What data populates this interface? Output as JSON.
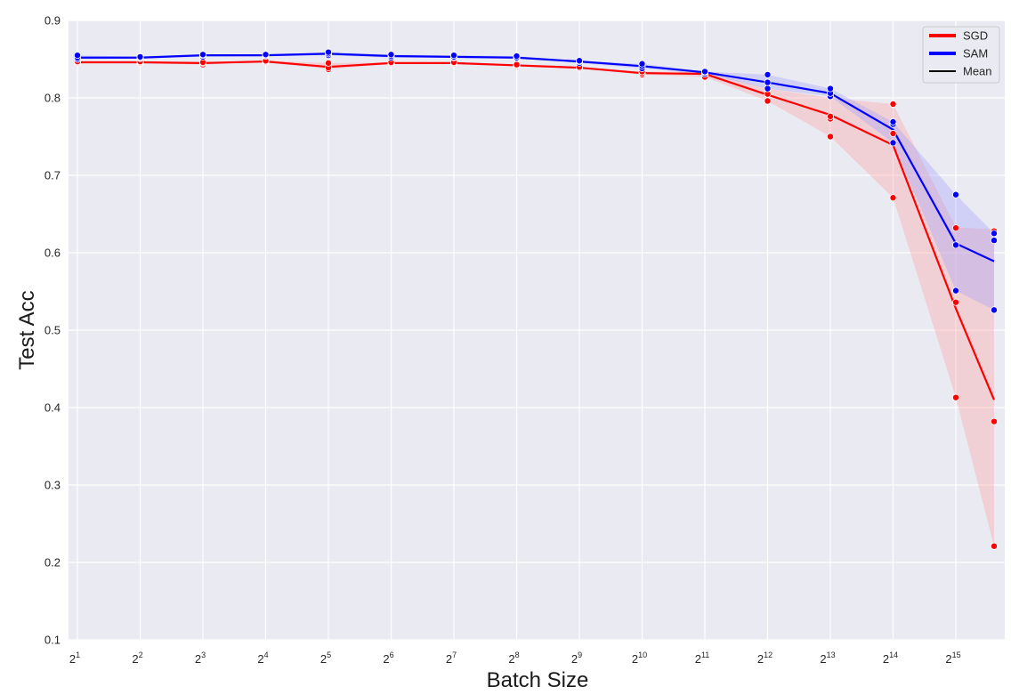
{
  "chart_data": {
    "type": "line",
    "xlabel": "Batch Size",
    "ylabel": "Test Acc",
    "x_scale": "log2",
    "x": [
      2,
      4,
      8,
      16,
      32,
      64,
      128,
      256,
      512,
      1024,
      2048,
      4096,
      8192,
      16384,
      32768,
      50000
    ],
    "x_ticks": [
      {
        "base": "2",
        "exp": "1"
      },
      {
        "base": "2",
        "exp": "2"
      },
      {
        "base": "2",
        "exp": "3"
      },
      {
        "base": "2",
        "exp": "4"
      },
      {
        "base": "2",
        "exp": "5"
      },
      {
        "base": "2",
        "exp": "6"
      },
      {
        "base": "2",
        "exp": "7"
      },
      {
        "base": "2",
        "exp": "8"
      },
      {
        "base": "2",
        "exp": "9"
      },
      {
        "base": "2",
        "exp": "10"
      },
      {
        "base": "2",
        "exp": "11"
      },
      {
        "base": "2",
        "exp": "12"
      },
      {
        "base": "2",
        "exp": "13"
      },
      {
        "base": "2",
        "exp": "14"
      },
      {
        "base": "2",
        "exp": "15"
      }
    ],
    "y_ticks": [
      "0.1",
      "0.2",
      "0.3",
      "0.4",
      "0.5",
      "0.6",
      "0.7",
      "0.8",
      "0.9"
    ],
    "ylim": [
      0.1,
      0.9
    ],
    "grid": true,
    "legend_position": "top-right",
    "legend": [
      {
        "label": "SGD",
        "color": "#ff0000"
      },
      {
        "label": "SAM",
        "color": "#0000ff"
      },
      {
        "label": "Mean",
        "color": "#000000"
      }
    ],
    "series": [
      {
        "name": "SGD",
        "color": "#ff0000",
        "band_color": "#ff9999",
        "mean": [
          0.846,
          0.846,
          0.845,
          0.847,
          0.84,
          0.845,
          0.845,
          0.842,
          0.839,
          0.832,
          0.831,
          0.804,
          0.778,
          0.739,
          0.528,
          0.41
        ],
        "lower": [
          0.845,
          0.845,
          0.843,
          0.846,
          0.837,
          0.844,
          0.844,
          0.841,
          0.838,
          0.83,
          0.827,
          0.796,
          0.75,
          0.671,
          0.413,
          0.221
        ],
        "upper": [
          0.847,
          0.847,
          0.846,
          0.848,
          0.845,
          0.846,
          0.846,
          0.843,
          0.84,
          0.834,
          0.834,
          0.812,
          0.8,
          0.792,
          0.633,
          0.63
        ],
        "points": [
          [
            0.845,
            0.846,
            0.847
          ],
          [
            0.845,
            0.846,
            0.847
          ],
          [
            0.843,
            0.845,
            0.846
          ],
          [
            0.846,
            0.847,
            0.848
          ],
          [
            0.837,
            0.839,
            0.845
          ],
          [
            0.844,
            0.845,
            0.846
          ],
          [
            0.844,
            0.845,
            0.846
          ],
          [
            0.841,
            0.842,
            0.843
          ],
          [
            0.838,
            0.839,
            0.84
          ],
          [
            0.83,
            0.832,
            0.834
          ],
          [
            0.827,
            0.831,
            0.834
          ],
          [
            0.796,
            0.805,
            0.812
          ],
          [
            0.75,
            0.773,
            0.776
          ],
          [
            0.671,
            0.754,
            0.792
          ],
          [
            0.413,
            0.536,
            0.632
          ],
          [
            0.221,
            0.382,
            0.628
          ]
        ]
      },
      {
        "name": "SAM",
        "color": "#0000ff",
        "band_color": "#9999ff",
        "mean": [
          0.852,
          0.852,
          0.855,
          0.855,
          0.857,
          0.854,
          0.853,
          0.852,
          0.847,
          0.841,
          0.833,
          0.82,
          0.806,
          0.759,
          0.612,
          0.589
        ],
        "lower": [
          0.85,
          0.851,
          0.853,
          0.854,
          0.855,
          0.852,
          0.852,
          0.851,
          0.845,
          0.838,
          0.831,
          0.812,
          0.802,
          0.742,
          0.551,
          0.526
        ],
        "upper": [
          0.855,
          0.853,
          0.856,
          0.856,
          0.859,
          0.856,
          0.855,
          0.854,
          0.848,
          0.844,
          0.834,
          0.83,
          0.812,
          0.769,
          0.675,
          0.625
        ],
        "points": [
          [
            0.85,
            0.852,
            0.855
          ],
          [
            0.851,
            0.852,
            0.853
          ],
          [
            0.853,
            0.855,
            0.856
          ],
          [
            0.854,
            0.855,
            0.856
          ],
          [
            0.855,
            0.857,
            0.859
          ],
          [
            0.852,
            0.854,
            0.856
          ],
          [
            0.852,
            0.853,
            0.855
          ],
          [
            0.851,
            0.852,
            0.854
          ],
          [
            0.845,
            0.847,
            0.848
          ],
          [
            0.838,
            0.841,
            0.844
          ],
          [
            0.831,
            0.833,
            0.834
          ],
          [
            0.812,
            0.82,
            0.83
          ],
          [
            0.802,
            0.806,
            0.812
          ],
          [
            0.742,
            0.766,
            0.769
          ],
          [
            0.551,
            0.61,
            0.675
          ],
          [
            0.526,
            0.616,
            0.625
          ]
        ]
      }
    ]
  }
}
